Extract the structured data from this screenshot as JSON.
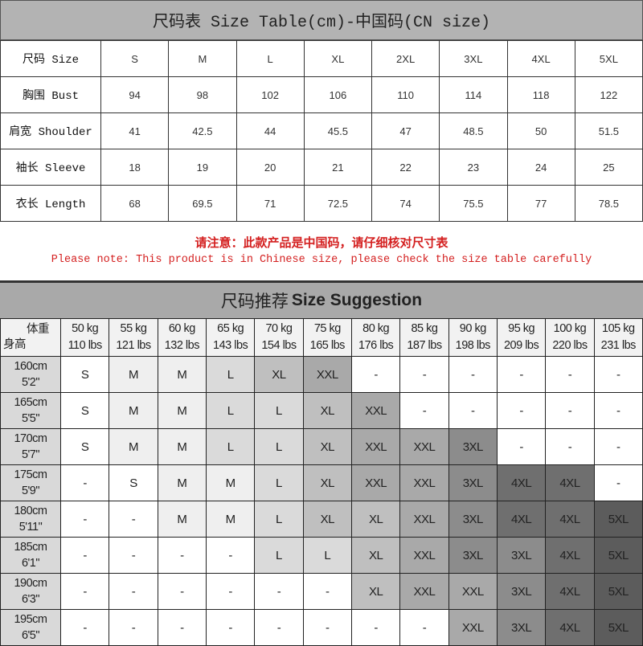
{
  "size_table": {
    "title": "尺码表 Size Table(cm)-中国码(CN size)",
    "rows": [
      {
        "label": "尺码 Size",
        "values": [
          "S",
          "M",
          "L",
          "XL",
          "2XL",
          "3XL",
          "4XL",
          "5XL"
        ]
      },
      {
        "label": "胸围 Bust",
        "values": [
          "94",
          "98",
          "102",
          "106",
          "110",
          "114",
          "118",
          "122"
        ]
      },
      {
        "label": "肩宽 Shoulder",
        "values": [
          "41",
          "42.5",
          "44",
          "45.5",
          "47",
          "48.5",
          "50",
          "51.5"
        ]
      },
      {
        "label": "袖长 Sleeve",
        "values": [
          "18",
          "19",
          "20",
          "21",
          "22",
          "23",
          "24",
          "25"
        ]
      },
      {
        "label": "衣长 Length",
        "values": [
          "68",
          "69.5",
          "71",
          "72.5",
          "74",
          "75.5",
          "77",
          "78.5"
        ]
      }
    ]
  },
  "note": {
    "cn": "请注意：此款产品是中国码，请仔细核对尺寸表",
    "en": "Please note: This product is in Chinese size, please check the size table carefully",
    "color": "#d42020"
  },
  "suggestion": {
    "title_cn": "尺码推荐",
    "title_en": "Size Suggestion",
    "corner_weight": "体重",
    "corner_height": "身高",
    "weights": [
      {
        "kg": "50 kg",
        "lbs": "110 lbs"
      },
      {
        "kg": "55 kg",
        "lbs": "121 lbs"
      },
      {
        "kg": "60 kg",
        "lbs": "132 lbs"
      },
      {
        "kg": "65 kg",
        "lbs": "143 lbs"
      },
      {
        "kg": "70 kg",
        "lbs": "154 lbs"
      },
      {
        "kg": "75 kg",
        "lbs": "165 lbs"
      },
      {
        "kg": "80 kg",
        "lbs": "176 lbs"
      },
      {
        "kg": "85 kg",
        "lbs": "187 lbs"
      },
      {
        "kg": "90 kg",
        "lbs": "198 lbs"
      },
      {
        "kg": "95 kg",
        "lbs": "209 lbs"
      },
      {
        "kg": "100 kg",
        "lbs": "220 lbs"
      },
      {
        "kg": "105 kg",
        "lbs": "231 lbs"
      }
    ],
    "rows": [
      {
        "cm": "160cm",
        "ft": "5'2\"",
        "sizes": [
          "S",
          "M",
          "M",
          "L",
          "XL",
          "XXL",
          "-",
          "-",
          "-",
          "-",
          "-",
          "-"
        ]
      },
      {
        "cm": "165cm",
        "ft": "5'5\"",
        "sizes": [
          "S",
          "M",
          "M",
          "L",
          "L",
          "XL",
          "XXL",
          "-",
          "-",
          "-",
          "-",
          "-"
        ]
      },
      {
        "cm": "170cm",
        "ft": "5'7\"",
        "sizes": [
          "S",
          "M",
          "M",
          "L",
          "L",
          "XL",
          "XXL",
          "XXL",
          "3XL",
          "-",
          "-",
          "-"
        ]
      },
      {
        "cm": "175cm",
        "ft": "5'9\"",
        "sizes": [
          "-",
          "S",
          "M",
          "M",
          "L",
          "XL",
          "XXL",
          "XXL",
          "3XL",
          "4XL",
          "4XL",
          "-"
        ]
      },
      {
        "cm": "180cm",
        "ft": "5'11\"",
        "sizes": [
          "-",
          "-",
          "M",
          "M",
          "L",
          "XL",
          "XL",
          "XXL",
          "3XL",
          "4XL",
          "4XL",
          "5XL"
        ]
      },
      {
        "cm": "185cm",
        "ft": "6'1\"",
        "sizes": [
          "-",
          "-",
          "-",
          "-",
          "L",
          "L",
          "XL",
          "XXL",
          "3XL",
          "3XL",
          "4XL",
          "5XL"
        ]
      },
      {
        "cm": "190cm",
        "ft": "6'3\"",
        "sizes": [
          "-",
          "-",
          "-",
          "-",
          "-",
          "-",
          "XL",
          "XXL",
          "XXL",
          "3XL",
          "4XL",
          "5XL"
        ]
      },
      {
        "cm": "195cm",
        "ft": "6'5\"",
        "sizes": [
          "-",
          "-",
          "-",
          "-",
          "-",
          "-",
          "-",
          "-",
          "XXL",
          "3XL",
          "4XL",
          "5XL"
        ]
      }
    ],
    "size_colors": {
      "-": "#ffffff",
      "S": "#ffffff",
      "M": "#efefef",
      "L": "#dadada",
      "XL": "#bfbfbf",
      "XXL": "#a9a9a9",
      "3XL": "#8c8c8c",
      "4XL": "#6f6f6f",
      "5XL": "#5c5c5c"
    }
  }
}
